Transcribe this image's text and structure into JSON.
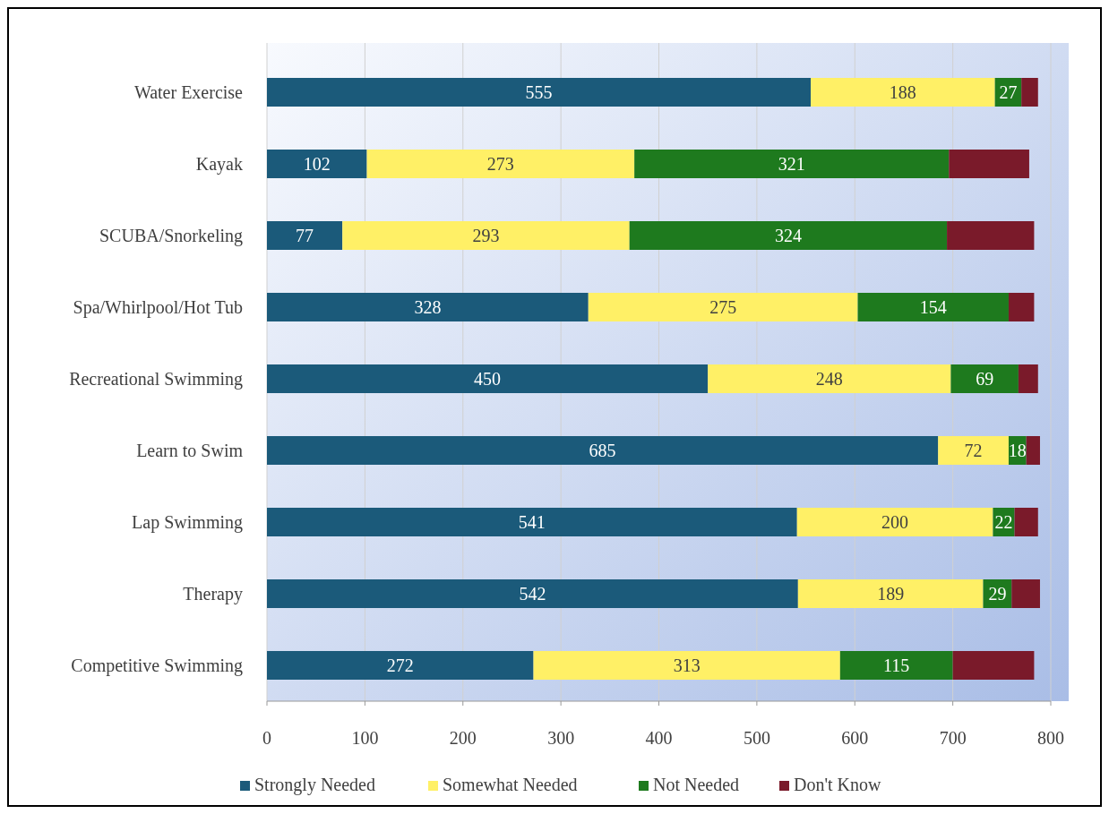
{
  "chart_data": {
    "type": "bar",
    "orientation": "horizontal",
    "stacked": true,
    "categories": [
      "Water Exercise",
      "Kayak",
      "SCUBA/Snorkeling",
      "Spa/Whirlpool/Hot Tub",
      "Recreational Swimming",
      "Learn to Swim",
      "Lap Swimming",
      "Therapy",
      "Competitive Swimming"
    ],
    "series": [
      {
        "name": "Strongly Needed",
        "color": "#1b5a7a",
        "values": [
          555,
          102,
          77,
          328,
          450,
          685,
          541,
          542,
          272
        ],
        "value_labels": [
          "555",
          "102",
          "77",
          "328",
          "450",
          "685",
          "541",
          "542",
          "272"
        ]
      },
      {
        "name": "Somewhat Needed",
        "color": "#fff066",
        "values": [
          188,
          273,
          293,
          275,
          248,
          72,
          200,
          189,
          313
        ],
        "value_labels": [
          "188",
          "273",
          "293",
          "275",
          "248",
          "72",
          "200",
          "189",
          "313"
        ]
      },
      {
        "name": "Not Needed",
        "color": "#1e7a1e",
        "values": [
          27,
          321,
          324,
          154,
          69,
          18,
          22,
          29,
          115
        ],
        "value_labels": [
          "27",
          "321",
          "324",
          "154",
          "69",
          "18",
          "22",
          "29",
          "115"
        ]
      },
      {
        "name": "Don't Know",
        "color": "#7a1a2a",
        "values": [
          17,
          82,
          89,
          26,
          20,
          14,
          24,
          29,
          83
        ]
      }
    ],
    "xlim": [
      0,
      800
    ],
    "xticks": [
      0,
      100,
      200,
      300,
      400,
      500,
      600,
      700,
      800
    ],
    "grid": "x",
    "legend": "bottom"
  }
}
